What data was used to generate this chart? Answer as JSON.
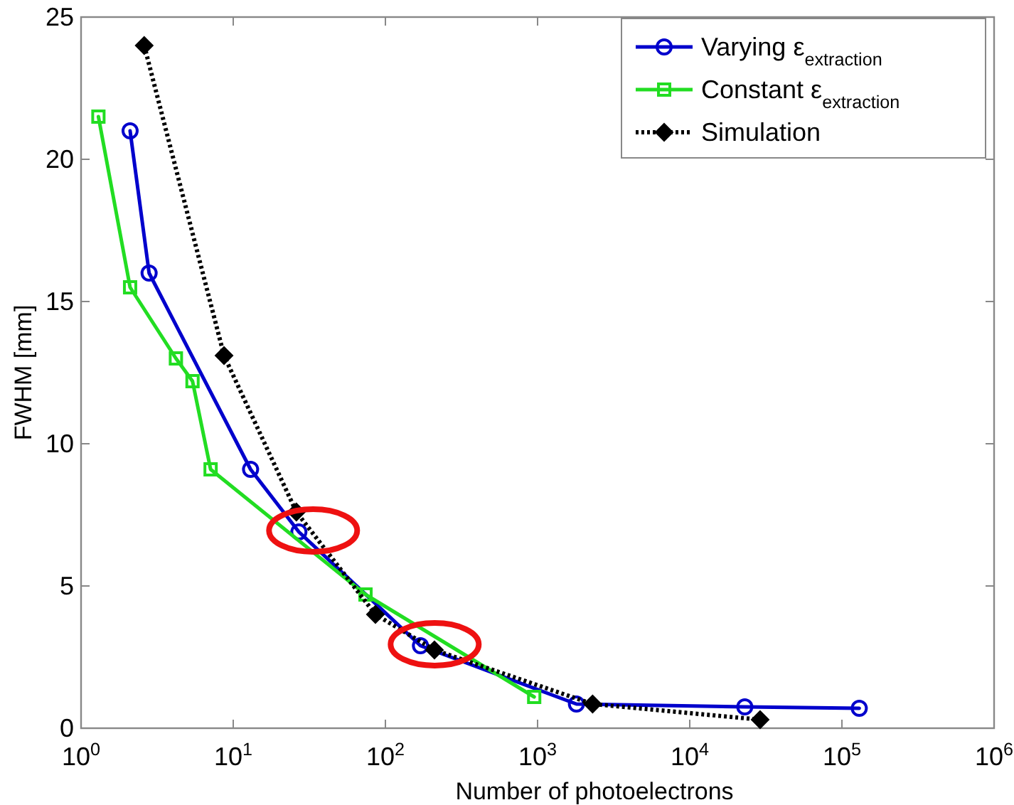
{
  "chart_data": {
    "type": "line",
    "xlabel": "Number of photoelectrons",
    "ylabel": "FWHM [mm]",
    "log": "x",
    "xlim": [
      1,
      1000000
    ],
    "ylim": [
      0,
      25
    ],
    "xticks": [
      {
        "value": 1,
        "label": "10$^{0}$"
      },
      {
        "value": 10,
        "label": "10$^{1}$"
      },
      {
        "value": 100,
        "label": "10$^{2}$"
      },
      {
        "value": 1000,
        "label": "10$^{3}$"
      },
      {
        "value": 10000,
        "label": "10$^{4}$"
      },
      {
        "value": 100000,
        "label": "10$^{5}$"
      },
      {
        "value": 1000000,
        "label": "10$^{6}$"
      }
    ],
    "yticks": [
      0,
      5,
      10,
      15,
      20,
      25
    ],
    "grid": false,
    "legend": "top right",
    "series": [
      {
        "name": "Varying ε$_{extraction}$",
        "color": "#0000cc",
        "marker": "circle",
        "line_style": "solid",
        "x": [
          2.1,
          2.8,
          13,
          27,
          170,
          1800,
          23000,
          130000
        ],
        "values": [
          21,
          16,
          9.1,
          6.9,
          2.9,
          0.85,
          0.75,
          0.7
        ]
      },
      {
        "name": "Constant ε$_{extraction}$",
        "color": "#22dd22",
        "marker": "square",
        "line_style": "solid",
        "x": [
          1.3,
          2.1,
          4.2,
          5.4,
          7.1,
          74,
          950
        ],
        "values": [
          21.5,
          15.5,
          13,
          12.2,
          9.1,
          4.7,
          1.1
        ]
      },
      {
        "name": "Simulation",
        "color": "#000000",
        "marker": "diamond",
        "line_style": "dotted",
        "x": [
          2.6,
          8.7,
          26,
          86,
          210,
          2300,
          29000
        ],
        "values": [
          24,
          13.1,
          7.6,
          4,
          2.75,
          0.85,
          0.3
        ]
      }
    ]
  }
}
